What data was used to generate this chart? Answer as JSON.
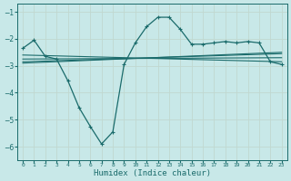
{
  "xlabel": "Humidex (Indice chaleur)",
  "bg_color": "#c8e8e8",
  "grid_color": "#b0d8d8",
  "line_color": "#1a6b6b",
  "xlim": [
    -0.5,
    23.5
  ],
  "ylim": [
    -6.5,
    -0.7
  ],
  "yticks": [
    -6,
    -5,
    -4,
    -3,
    -2,
    -1
  ],
  "xticks": [
    0,
    1,
    2,
    3,
    4,
    5,
    6,
    7,
    8,
    9,
    10,
    11,
    12,
    13,
    14,
    15,
    16,
    17,
    18,
    19,
    20,
    21,
    22,
    23
  ],
  "xtick_labels": [
    "0",
    "1",
    "2",
    "3",
    "4",
    "5",
    "6",
    "7",
    "8",
    "9",
    "10",
    "11",
    "12",
    "13",
    "14",
    "15",
    "16",
    "17",
    "18",
    "19",
    "20",
    "21",
    "22",
    "23"
  ],
  "main_x": [
    0,
    1,
    2,
    3,
    4,
    5,
    6,
    7,
    8,
    9,
    10,
    11,
    12,
    13,
    14,
    15,
    16,
    17,
    18,
    19,
    20,
    21,
    22,
    23
  ],
  "main_y": [
    -2.35,
    -2.05,
    -2.65,
    -2.75,
    -3.55,
    -4.55,
    -5.25,
    -5.9,
    -5.45,
    -2.95,
    -2.15,
    -1.55,
    -1.2,
    -1.2,
    -1.65,
    -2.2,
    -2.2,
    -2.15,
    -2.1,
    -2.15,
    -2.1,
    -2.15,
    -2.85,
    -2.95
  ],
  "line1_x": [
    0,
    23
  ],
  "line1_y": [
    -2.6,
    -2.85
  ],
  "line2_x": [
    0,
    23
  ],
  "line2_y": [
    -2.75,
    -2.7
  ],
  "line3_x": [
    0,
    23
  ],
  "line3_y": [
    -2.85,
    -2.55
  ],
  "line4_x": [
    0,
    23
  ],
  "line4_y": [
    -2.9,
    -2.5
  ]
}
